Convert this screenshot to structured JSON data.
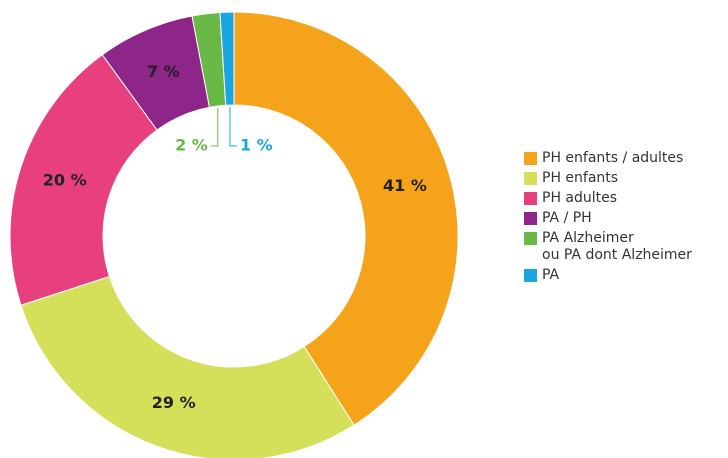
{
  "chart_data": {
    "type": "donut",
    "categories": [
      "PH enfants / adultes",
      "PH enfants",
      "PH adultes",
      "PA / PH",
      "PA Alzheimer\nou PA dont Alzheimer",
      "PA"
    ],
    "values": [
      41,
      29,
      20,
      7,
      2,
      1
    ],
    "value_labels": [
      "41 %",
      "29 %",
      "20 %",
      "7 %",
      "2 %",
      "1 %"
    ],
    "colors": [
      "#f5a31a",
      "#d4df5a",
      "#e8407f",
      "#8e2589",
      "#6ab845",
      "#1ba6e0"
    ],
    "legend": "right"
  }
}
